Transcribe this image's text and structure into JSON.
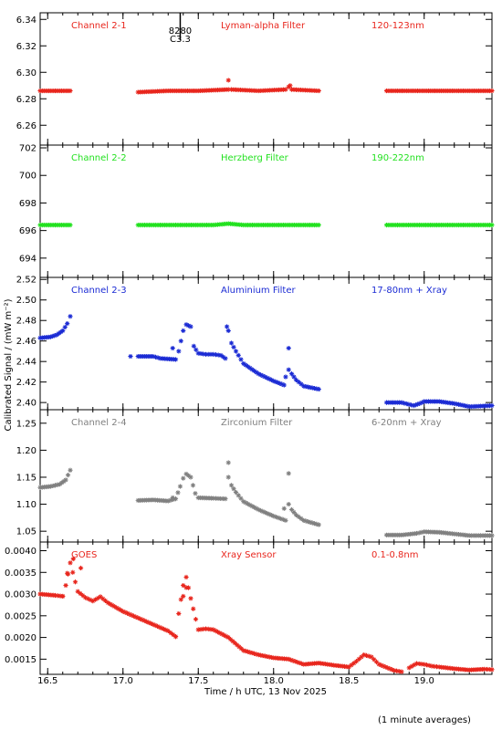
{
  "figure": {
    "ylabel": "Calibrated Signal / (mW m⁻²)",
    "xlabel": "Time / h UTC, 13 Nov 2025",
    "footnote": "(1 minute averages)",
    "xlim": [
      16.45,
      19.45
    ],
    "xticks": [
      "16.5",
      "17.0",
      "17.5",
      "18.0",
      "18.5",
      "19.0"
    ],
    "flare_marker": {
      "x": 17.38,
      "class_label": "8280",
      "class_value": "C3.3"
    }
  },
  "chart_data": [
    {
      "type": "scatter",
      "channel": "Channel 2-1",
      "filter": "Lyman-alpha Filter",
      "band": "120-123nm",
      "color": "#e8261d",
      "ylim": [
        6.245,
        6.345
      ],
      "yticks": [
        "6.26",
        "6.28",
        "6.30",
        "6.32",
        "6.34"
      ],
      "segments": [
        {
          "x": [
            16.45,
            16.55,
            16.65
          ],
          "y": [
            6.286,
            6.286,
            6.286
          ]
        },
        {
          "x": [
            17.1,
            17.3,
            17.5,
            17.7,
            17.72,
            17.9,
            18.08,
            18.1,
            18.12,
            18.3
          ],
          "y": [
            6.285,
            6.286,
            6.286,
            6.287,
            6.287,
            6.286,
            6.287,
            6.289,
            6.287,
            6.286
          ]
        },
        {
          "x": [
            18.75,
            19.0,
            19.2,
            19.45
          ],
          "y": [
            6.286,
            6.286,
            6.286,
            6.286
          ]
        }
      ],
      "outliers": [
        {
          "x": 17.7,
          "y": 6.294
        },
        {
          "x": 18.11,
          "y": 6.29
        }
      ]
    },
    {
      "type": "scatter",
      "channel": "Channel 2-2",
      "filter": "Herzberg Filter",
      "band": "190-222nm",
      "color": "#22e11f",
      "ylim": [
        692.6,
        702.2
      ],
      "yticks": [
        "694",
        "696",
        "698",
        "700",
        "702"
      ],
      "segments": [
        {
          "x": [
            16.45,
            16.65
          ],
          "y": [
            696.4,
            696.4
          ]
        },
        {
          "x": [
            17.1,
            17.6,
            17.7,
            17.8,
            18.3
          ],
          "y": [
            696.4,
            696.4,
            696.5,
            696.4,
            696.4
          ]
        },
        {
          "x": [
            18.75,
            19.2,
            19.45
          ],
          "y": [
            696.4,
            696.4,
            696.4
          ]
        }
      ],
      "outliers": []
    },
    {
      "type": "scatter",
      "channel": "Channel 2-3",
      "filter": "Aluminium Filter",
      "band": "17-80nm + Xray",
      "color": "#1b2bd4",
      "ylim": [
        2.393,
        2.522
      ],
      "yticks": [
        "2.40",
        "2.42",
        "2.44",
        "2.46",
        "2.48",
        "2.50",
        "2.52"
      ],
      "segments": [
        {
          "x": [
            16.45,
            16.52,
            16.56,
            16.6,
            16.63,
            16.65
          ],
          "y": [
            2.463,
            2.464,
            2.466,
            2.47,
            2.477,
            2.484
          ]
        },
        {
          "x": [
            17.1,
            17.2,
            17.25,
            17.35,
            17.37,
            17.4,
            17.42,
            17.45,
            17.47,
            17.5,
            17.55,
            17.6,
            17.65,
            17.68
          ],
          "y": [
            2.445,
            2.445,
            2.443,
            2.442,
            2.45,
            2.47,
            2.476,
            2.474,
            2.455,
            2.448,
            2.447,
            2.447,
            2.446,
            2.443
          ]
        },
        {
          "x": [
            17.7,
            17.72,
            17.75,
            17.8,
            17.9,
            18.0,
            18.07
          ],
          "y": [
            2.47,
            2.458,
            2.45,
            2.438,
            2.428,
            2.421,
            2.417
          ]
        },
        {
          "x": [
            18.08,
            18.1,
            18.12,
            18.15,
            18.2,
            18.3
          ],
          "y": [
            2.425,
            2.432,
            2.428,
            2.422,
            2.416,
            2.413
          ]
        },
        {
          "x": [
            18.75,
            18.85,
            18.93,
            18.97,
            19.0,
            19.1,
            19.2,
            19.3,
            19.45
          ],
          "y": [
            2.4,
            2.4,
            2.397,
            2.399,
            2.401,
            2.401,
            2.399,
            2.396,
            2.397
          ]
        }
      ],
      "outliers": [
        {
          "x": 17.33,
          "y": 2.453
        },
        {
          "x": 17.69,
          "y": 2.474
        },
        {
          "x": 18.1,
          "y": 2.453
        },
        {
          "x": 17.05,
          "y": 2.445
        }
      ]
    },
    {
      "type": "scatter",
      "channel": "Channel 2-4",
      "filter": "Zirconium Filter",
      "band": "6-20nm + Xray",
      "color": "#808080",
      "ylim": [
        1.03,
        1.275
      ],
      "yticks": [
        "1.05",
        "1.10",
        "1.15",
        "1.20",
        "1.25"
      ],
      "segments": [
        {
          "x": [
            16.45,
            16.52,
            16.58,
            16.62,
            16.65
          ],
          "y": [
            1.131,
            1.133,
            1.137,
            1.145,
            1.163
          ]
        },
        {
          "x": [
            17.1,
            17.2,
            17.3,
            17.35,
            17.38,
            17.4,
            17.42,
            17.45,
            17.48,
            17.5,
            17.6,
            17.68
          ],
          "y": [
            1.107,
            1.108,
            1.106,
            1.11,
            1.133,
            1.148,
            1.156,
            1.15,
            1.12,
            1.112,
            1.111,
            1.11
          ]
        },
        {
          "x": [
            17.7,
            17.72,
            17.75,
            17.8,
            17.9,
            18.0,
            18.08
          ],
          "y": [
            1.15,
            1.135,
            1.122,
            1.105,
            1.09,
            1.078,
            1.07
          ]
        },
        {
          "x": [
            18.1,
            18.12,
            18.15,
            18.2,
            18.3
          ],
          "y": [
            1.1,
            1.09,
            1.08,
            1.07,
            1.062
          ]
        },
        {
          "x": [
            18.75,
            18.85,
            18.95,
            19.0,
            19.1,
            19.2,
            19.3,
            19.45
          ],
          "y": [
            1.043,
            1.043,
            1.046,
            1.049,
            1.048,
            1.045,
            1.042,
            1.042
          ]
        }
      ],
      "outliers": [
        {
          "x": 17.7,
          "y": 1.177
        },
        {
          "x": 18.1,
          "y": 1.157
        },
        {
          "x": 17.33,
          "y": 1.112
        },
        {
          "x": 18.07,
          "y": 1.092
        }
      ]
    },
    {
      "type": "scatter",
      "channel": "GOES",
      "filter": "Xray Sensor",
      "band": "0.1-0.8nm",
      "color": "#e8261d",
      "ylim": [
        0.00115,
        0.0042
      ],
      "yticks": [
        "0.0015",
        "0.0020",
        "0.0025",
        "0.0030",
        "0.0035",
        "0.0040"
      ],
      "segments": [
        {
          "x": [
            16.45,
            16.55,
            16.6
          ],
          "y": [
            0.003,
            0.00297,
            0.00295
          ]
        },
        {
          "x": [
            16.6,
            16.62,
            16.65,
            16.7,
            16.75,
            16.8,
            16.85,
            16.9,
            17.0,
            17.1,
            17.2,
            17.3,
            17.35
          ],
          "y": [
            0.00295,
            0.0032,
            0.00372,
            0.00306,
            0.00292,
            0.00284,
            0.00294,
            0.0028,
            0.0026,
            0.00245,
            0.0023,
            0.00215,
            0.00202
          ]
        },
        {
          "x": [
            17.35,
            17.37,
            17.4,
            17.42,
            17.45,
            17.5,
            17.55,
            17.6,
            17.7,
            17.8,
            17.9,
            18.0,
            18.1,
            18.2,
            18.3,
            18.4,
            18.5,
            18.55,
            18.6,
            18.65,
            18.7,
            18.8,
            18.85
          ],
          "y": [
            0.00202,
            0.00255,
            0.0032,
            0.00339,
            0.0029,
            0.00218,
            0.0022,
            0.00218,
            0.002,
            0.0017,
            0.0016,
            0.00153,
            0.0015,
            0.00138,
            0.00141,
            0.00136,
            0.00132,
            0.00145,
            0.0016,
            0.00155,
            0.00138,
            0.00124,
            0.00121
          ]
        },
        {
          "x": [
            18.9,
            18.95,
            19.0,
            19.05,
            19.1,
            19.2,
            19.3,
            19.4,
            19.45
          ],
          "y": [
            0.0013,
            0.0014,
            0.00138,
            0.00134,
            0.00132,
            0.00128,
            0.00125,
            0.00127,
            0.00126
          ]
        }
      ],
      "outliers": [
        {
          "x": 16.63,
          "y": 0.00348
        },
        {
          "x": 16.67,
          "y": 0.00381
        },
        {
          "x": 16.72,
          "y": 0.0036
        },
        {
          "x": 17.4,
          "y": 0.00295
        },
        {
          "x": 17.42,
          "y": 0.00315
        }
      ]
    }
  ]
}
